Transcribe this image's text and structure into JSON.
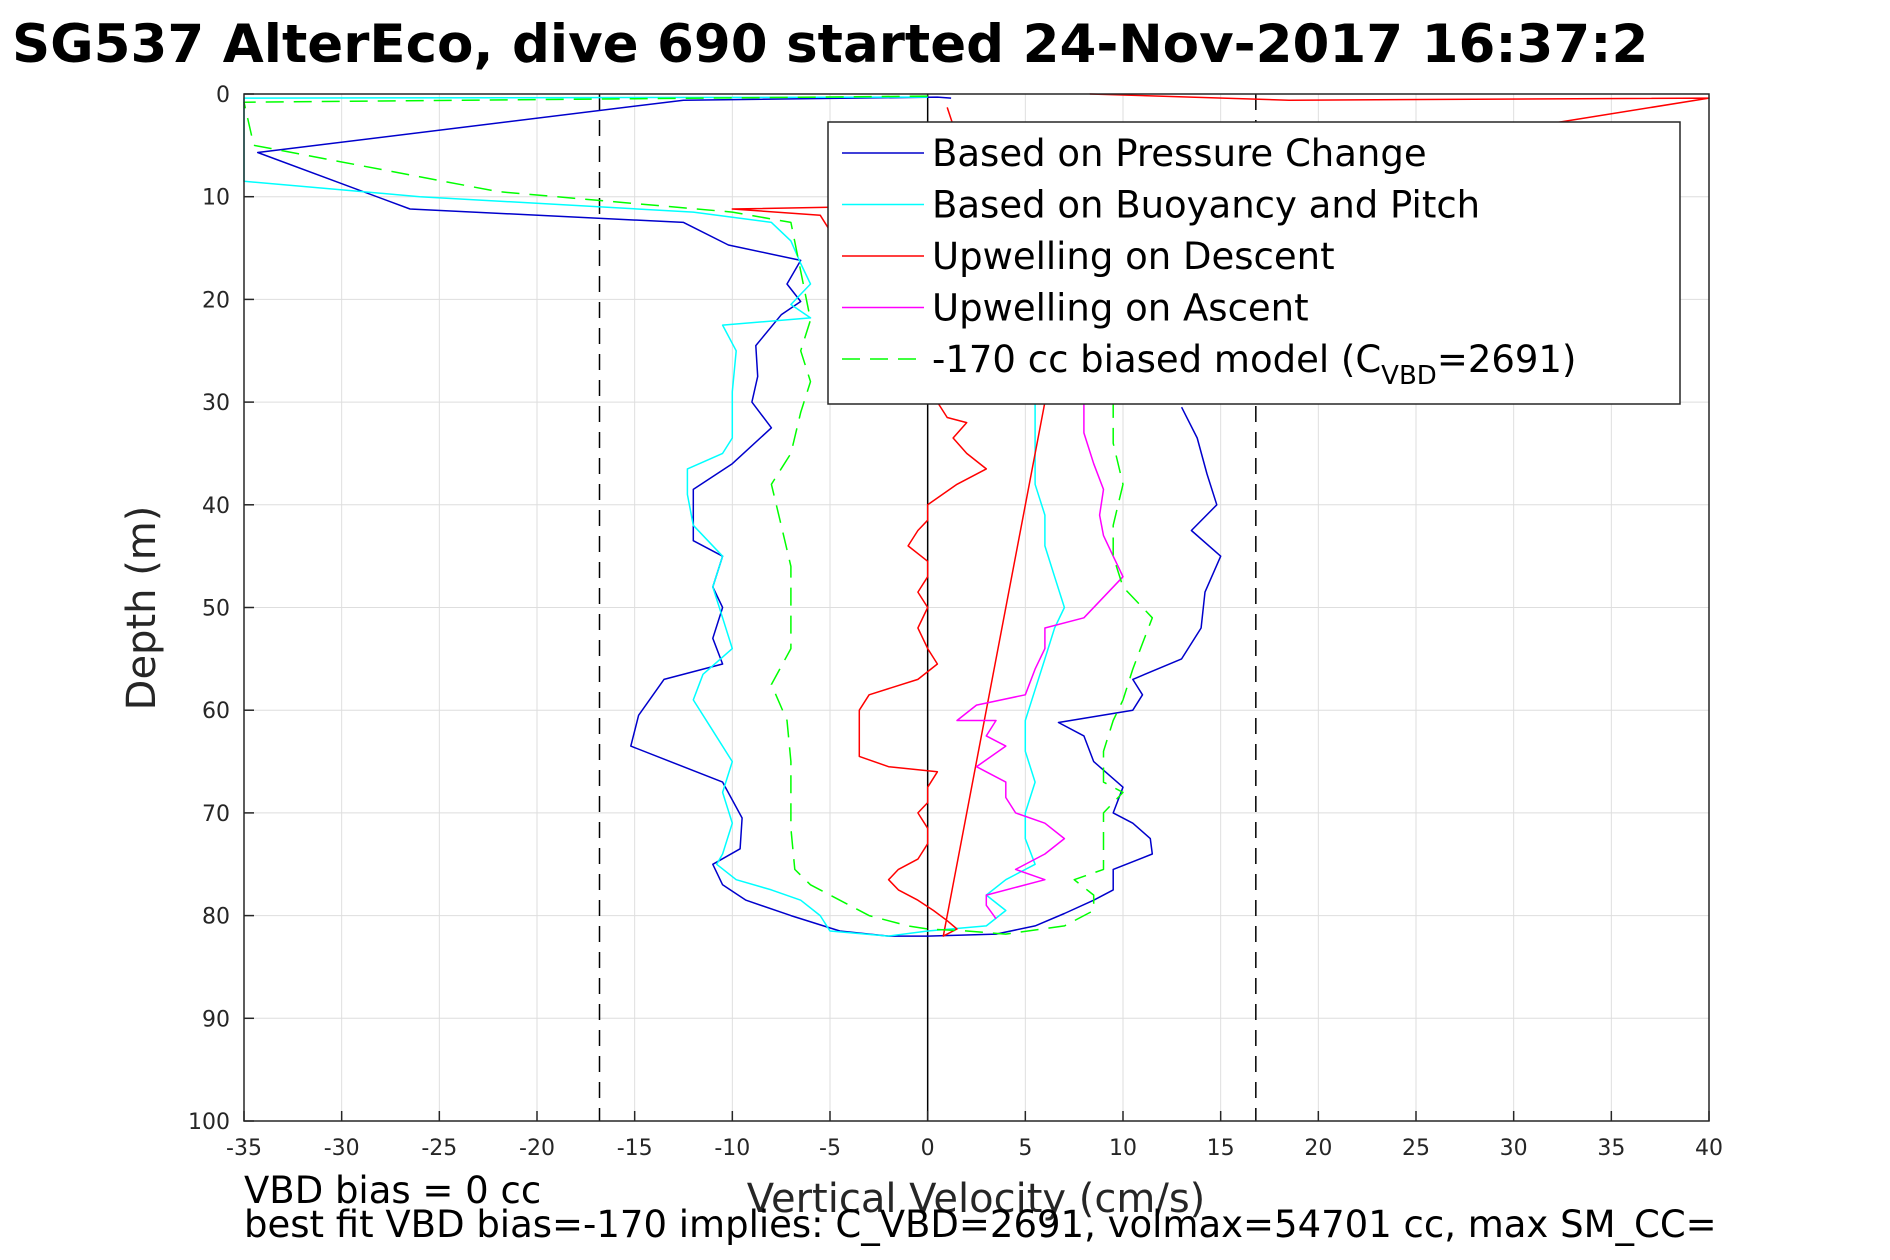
{
  "chart_data": {
    "type": "line",
    "title": "SG537 AlterEco, dive 690 started 24-Nov-2017 16:37:2",
    "xlabel": "Vertical Velocity (cm/s)",
    "ylabel": "Depth (m)",
    "xlim": [
      -35,
      40
    ],
    "ylim": [
      0,
      100
    ],
    "y_reversed": true,
    "grid": true,
    "legend_position": "top-right",
    "xticks": [
      -35,
      -30,
      -25,
      -20,
      -15,
      -10,
      -5,
      0,
      5,
      10,
      15,
      20,
      25,
      30,
      35,
      40
    ],
    "yticks": [
      0,
      10,
      20,
      30,
      40,
      50,
      60,
      70,
      80,
      90,
      100
    ],
    "reference_lines": [
      {
        "kind": "vertical",
        "x": 0,
        "style": "solid",
        "color": "#000000"
      },
      {
        "kind": "vertical",
        "x": -16.8,
        "style": "dashed",
        "color": "#000000"
      },
      {
        "kind": "vertical",
        "x": 16.8,
        "style": "dashed",
        "color": "#000000"
      }
    ],
    "series": [
      {
        "name": "Based on Pressure Change",
        "color": "#0000cc",
        "dash": "solid",
        "points": [
          [
            1.2,
            0.4
          ],
          [
            0.5,
            0.3
          ],
          [
            -12.5,
            0.6
          ],
          [
            -34.3,
            5.7
          ],
          [
            -26.5,
            11.2
          ],
          [
            -12.5,
            12.5
          ],
          [
            -10.2,
            14.7
          ],
          [
            -6.5,
            16.2
          ],
          [
            -7.2,
            18.5
          ],
          [
            -6.5,
            20.2
          ],
          [
            -7.5,
            21.5
          ],
          [
            -8.8,
            24.5
          ],
          [
            -8.7,
            27.5
          ],
          [
            -9,
            30
          ],
          [
            -8,
            32.5
          ],
          [
            -10,
            36
          ],
          [
            -12,
            38.5
          ],
          [
            -12,
            43.5
          ],
          [
            -10.5,
            45
          ],
          [
            -11,
            48
          ],
          [
            -10.5,
            50
          ],
          [
            -11,
            53
          ],
          [
            -10.5,
            55.5
          ],
          [
            -13.5,
            57
          ],
          [
            -14.8,
            60.5
          ],
          [
            -15.2,
            63.5
          ],
          [
            -10.5,
            67
          ],
          [
            -9.5,
            70.5
          ],
          [
            -9.6,
            73.5
          ],
          [
            -11,
            75
          ],
          [
            -10.5,
            77
          ],
          [
            -9.3,
            78.5
          ],
          [
            -7,
            80
          ],
          [
            -4.5,
            81.5
          ],
          [
            -2,
            82
          ],
          [
            0,
            82
          ],
          [
            3.5,
            81.8
          ],
          [
            5.5,
            81
          ],
          [
            7,
            79.8
          ],
          [
            8.5,
            78.5
          ],
          [
            9.5,
            77.5
          ],
          [
            9.5,
            75.5
          ],
          [
            11.5,
            74
          ],
          [
            11.4,
            72.5
          ],
          [
            10.5,
            71
          ],
          [
            9.5,
            70
          ],
          [
            10,
            67.5
          ],
          [
            8.5,
            65
          ],
          [
            8,
            62.5
          ],
          [
            6.7,
            61.2
          ],
          [
            10.5,
            60
          ],
          [
            11,
            58.5
          ],
          [
            10.5,
            57
          ],
          [
            13,
            55
          ],
          [
            14,
            52
          ],
          [
            14.2,
            48.5
          ],
          [
            15,
            45
          ],
          [
            13.5,
            42.5
          ],
          [
            14.8,
            40
          ],
          [
            14.3,
            37
          ],
          [
            13.8,
            33.5
          ],
          [
            13,
            30.5
          ]
        ]
      },
      {
        "name": "Based on Buoyancy and Pitch",
        "color": "#00ffff",
        "dash": "solid",
        "points": [
          [
            0,
            0.3
          ],
          [
            -35,
            0.4
          ],
          [
            -35,
            8.5
          ],
          [
            -26,
            10
          ],
          [
            -12,
            11.5
          ],
          [
            -8,
            12.5
          ],
          [
            -7,
            14.3
          ],
          [
            -6.5,
            16.5
          ],
          [
            -6,
            18.5
          ],
          [
            -7,
            20.5
          ],
          [
            -6,
            21.8
          ],
          [
            -10.5,
            22.5
          ],
          [
            -9.8,
            25
          ],
          [
            -10,
            29
          ],
          [
            -10,
            33.5
          ],
          [
            -10.5,
            35
          ],
          [
            -12.3,
            36.5
          ],
          [
            -12.3,
            39
          ],
          [
            -12,
            42
          ],
          [
            -10.5,
            45
          ],
          [
            -11,
            48
          ],
          [
            -10.5,
            51
          ],
          [
            -10,
            54
          ],
          [
            -11.5,
            56.5
          ],
          [
            -12,
            59
          ],
          [
            -11,
            62
          ],
          [
            -10,
            65
          ],
          [
            -10.5,
            68
          ],
          [
            -10,
            71
          ],
          [
            -10.5,
            74
          ],
          [
            -10.8,
            75
          ],
          [
            -9.8,
            76.5
          ],
          [
            -8,
            77.5
          ],
          [
            -6.5,
            78.5
          ],
          [
            -5.5,
            80
          ],
          [
            -5,
            81.5
          ],
          [
            -2,
            82
          ],
          [
            0,
            81.5
          ],
          [
            3,
            81
          ],
          [
            4,
            79.5
          ],
          [
            3,
            78
          ],
          [
            4,
            76.5
          ],
          [
            5.5,
            75
          ],
          [
            5,
            72.5
          ],
          [
            5,
            70
          ],
          [
            5.5,
            67
          ],
          [
            5,
            64
          ],
          [
            5,
            61
          ],
          [
            5.5,
            58
          ],
          [
            6,
            55
          ],
          [
            6.5,
            52
          ],
          [
            7,
            50
          ],
          [
            6.5,
            47
          ],
          [
            6,
            44
          ],
          [
            6,
            41
          ],
          [
            5.5,
            38
          ],
          [
            5.5,
            35
          ],
          [
            5.5,
            32
          ],
          [
            5.5,
            30
          ]
        ]
      },
      {
        "name": "Upwelling on Descent",
        "color": "#ff0000",
        "dash": "solid",
        "points": [
          [
            8.3,
            0
          ],
          [
            18.5,
            0.6
          ],
          [
            40,
            0.4
          ],
          [
            31.5,
            3
          ],
          [
            22,
            10.5
          ],
          [
            10.5,
            10.5
          ],
          [
            -10,
            11.2
          ],
          [
            -5.5,
            11.8
          ],
          [
            0.5,
            30
          ],
          [
            1,
            31.5
          ],
          [
            2,
            32
          ],
          [
            1.3,
            33.5
          ],
          [
            2,
            35
          ],
          [
            3,
            36.5
          ],
          [
            1.5,
            38
          ],
          [
            0,
            40
          ],
          [
            0,
            41.5
          ],
          [
            -0.5,
            42.5
          ],
          [
            -1,
            44
          ],
          [
            0,
            45.5
          ],
          [
            0,
            47
          ],
          [
            -0.5,
            48.5
          ],
          [
            0,
            50
          ],
          [
            -0.5,
            52
          ],
          [
            0,
            54
          ],
          [
            0.5,
            55.5
          ],
          [
            -0.5,
            57
          ],
          [
            -3,
            58.5
          ],
          [
            -3.5,
            60
          ],
          [
            -3.5,
            62.5
          ],
          [
            -3.5,
            64.5
          ],
          [
            -2,
            65.5
          ],
          [
            0.5,
            66
          ],
          [
            0,
            67.5
          ],
          [
            0,
            69
          ],
          [
            -0.5,
            70
          ],
          [
            0,
            71.5
          ],
          [
            0,
            73
          ],
          [
            -0.5,
            74.5
          ],
          [
            -1.5,
            75.5
          ],
          [
            -2,
            76.5
          ],
          [
            -1.5,
            77.5
          ],
          [
            -0.5,
            78.5
          ],
          [
            0.3,
            79.5
          ],
          [
            1,
            80.5
          ],
          [
            1.5,
            81.3
          ],
          [
            0.8,
            82
          ],
          [
            6,
            30
          ],
          [
            1,
            1.3
          ]
        ]
      },
      {
        "name": "Upwelling on Ascent",
        "color": "#ff00ff",
        "dash": "solid",
        "points": [
          [
            3.5,
            80.3
          ],
          [
            3,
            79
          ],
          [
            3,
            78
          ],
          [
            6,
            76.5
          ],
          [
            4.5,
            75.5
          ],
          [
            6,
            74
          ],
          [
            7,
            72.5
          ],
          [
            6,
            71
          ],
          [
            4.5,
            70
          ],
          [
            4,
            68.5
          ],
          [
            4,
            67
          ],
          [
            2.5,
            65.5
          ],
          [
            4,
            63.5
          ],
          [
            3,
            62.5
          ],
          [
            3.5,
            61
          ],
          [
            1.5,
            61
          ],
          [
            2.5,
            59.5
          ],
          [
            5,
            58.5
          ],
          [
            5.5,
            56
          ],
          [
            6,
            54
          ],
          [
            6,
            52
          ],
          [
            8,
            51
          ],
          [
            9,
            49
          ],
          [
            10,
            47
          ],
          [
            9.5,
            45
          ],
          [
            9,
            43
          ],
          [
            8.8,
            41
          ],
          [
            9,
            38.5
          ],
          [
            8.5,
            36
          ],
          [
            8,
            33
          ],
          [
            8,
            30
          ]
        ]
      },
      {
        "name": "-170 cc biased model (C_VBD=2691)",
        "color": "#00ff00",
        "dash": "dashed",
        "points": [
          [
            0,
            0.2
          ],
          [
            -35,
            0.8
          ],
          [
            -34.5,
            5
          ],
          [
            -22,
            9.5
          ],
          [
            -10,
            11.5
          ],
          [
            -7,
            12.5
          ],
          [
            -6,
            22
          ],
          [
            -6.5,
            25
          ],
          [
            -6,
            28
          ],
          [
            -6.5,
            31
          ],
          [
            -7,
            35
          ],
          [
            -8,
            38
          ],
          [
            -7.5,
            42
          ],
          [
            -7,
            46
          ],
          [
            -7,
            50
          ],
          [
            -7,
            54
          ],
          [
            -8,
            57.5
          ],
          [
            -7.2,
            61
          ],
          [
            -7,
            65
          ],
          [
            -7,
            68.5
          ],
          [
            -7,
            71.5
          ],
          [
            -6.8,
            75.5
          ],
          [
            -6,
            77
          ],
          [
            -4.5,
            78.5
          ],
          [
            -3,
            80
          ],
          [
            -1,
            81
          ],
          [
            0,
            81.3
          ],
          [
            2,
            81.5
          ],
          [
            4,
            81.8
          ],
          [
            7,
            81
          ],
          [
            8.5,
            79.5
          ],
          [
            8.5,
            78
          ],
          [
            7.5,
            76.5
          ],
          [
            9,
            75.5
          ],
          [
            9,
            73
          ],
          [
            9,
            70
          ],
          [
            10,
            68
          ],
          [
            9,
            67
          ],
          [
            9,
            64
          ],
          [
            9.5,
            61
          ],
          [
            10,
            59
          ],
          [
            10.5,
            56
          ],
          [
            11,
            53.5
          ],
          [
            11.5,
            51
          ],
          [
            10,
            48
          ],
          [
            9.5,
            45
          ],
          [
            9.5,
            42
          ],
          [
            10,
            38
          ],
          [
            9.5,
            34
          ],
          [
            9.5,
            30
          ]
        ]
      }
    ],
    "annotations": [
      "VBD bias = 0 cc",
      "best fit VBD bias=-170 implies: C_VBD=2691, volmax=54701 cc, max SM_CC="
    ]
  },
  "legend": [
    {
      "label": "Based on Pressure Change",
      "color": "#0000cc",
      "dash": "solid"
    },
    {
      "label": "Based on Buoyancy and Pitch",
      "color": "#00ffff",
      "dash": "solid"
    },
    {
      "label": "Upwelling on Descent",
      "color": "#ff0000",
      "dash": "solid"
    },
    {
      "label": "Upwelling on Ascent",
      "color": "#ff00ff",
      "dash": "solid"
    },
    {
      "label_main": "-170 cc biased model (C",
      "label_sub": "VBD",
      "label_tail": "=2691)",
      "color": "#00ff00",
      "dash": "dashed"
    }
  ]
}
